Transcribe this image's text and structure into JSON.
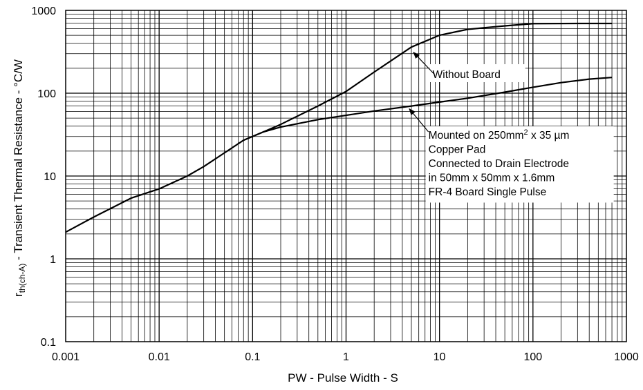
{
  "chart_data": {
    "type": "line",
    "xscale": "log",
    "yscale": "log",
    "xlim": [
      0.001,
      1000
    ],
    "ylim": [
      0.1,
      1000
    ],
    "grid": true,
    "xlabel": "PW -  Pulse Width -  S",
    "ylabel_symbol": "r",
    "ylabel_subscript": "th(ch-A)",
    "ylabel_rest": " -  Transient Thermal Resistance -  °C/W",
    "x_ticks": [
      "0.001",
      "0.01",
      "0.1",
      "1",
      "10",
      "100",
      "1000"
    ],
    "y_ticks": [
      "0.1",
      "1",
      "10",
      "100",
      "1000"
    ],
    "series": [
      {
        "label": "Without Board",
        "points": [
          [
            0.001,
            2.1
          ],
          [
            0.002,
            3.2
          ],
          [
            0.005,
            5.4
          ],
          [
            0.01,
            7.0
          ],
          [
            0.02,
            10
          ],
          [
            0.03,
            13
          ],
          [
            0.05,
            19
          ],
          [
            0.08,
            27
          ],
          [
            0.13,
            34
          ],
          [
            0.2,
            42
          ],
          [
            0.5,
            70
          ],
          [
            1,
            105
          ],
          [
            2,
            180
          ],
          [
            5,
            360
          ],
          [
            10,
            500
          ],
          [
            20,
            590
          ],
          [
            50,
            650
          ],
          [
            100,
            690
          ],
          [
            300,
            695
          ],
          [
            700,
            695
          ]
        ]
      },
      {
        "label_lines": [
          [
            "Mounted on 250mm",
            "2",
            " x 35 µm"
          ],
          [
            "Copper Pad"
          ],
          [
            "Connected to Drain Electrode"
          ],
          [
            "in 50mm  x 50mm x 1.6mm"
          ],
          [
            "FR-4 Board   Single Pulse"
          ]
        ],
        "points": [
          [
            0.13,
            34
          ],
          [
            0.2,
            39
          ],
          [
            0.5,
            48
          ],
          [
            1,
            54
          ],
          [
            2,
            61
          ],
          [
            5,
            70
          ],
          [
            10,
            78
          ],
          [
            20,
            87
          ],
          [
            50,
            103
          ],
          [
            100,
            118
          ],
          [
            200,
            134
          ],
          [
            400,
            148
          ],
          [
            700,
            155
          ]
        ]
      }
    ],
    "annotations": [
      {
        "series": 0,
        "text": "Without Board",
        "arrow_to": [
          5,
          330
        ]
      },
      {
        "series": 1,
        "text": "Mounted on 250mm2 x 35 µm",
        "arrow_to": [
          5,
          70
        ]
      }
    ]
  }
}
